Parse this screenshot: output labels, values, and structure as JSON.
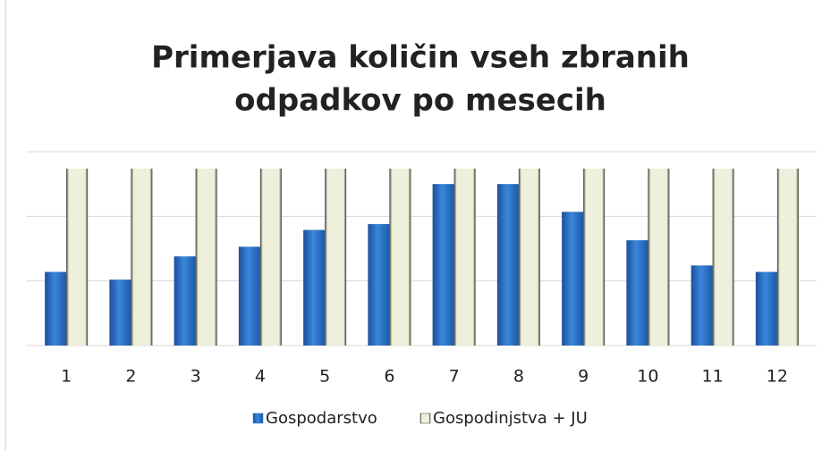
{
  "chart_data": {
    "type": "bar",
    "title": [
      "Primerjava količin vseh zbranih",
      "odpadkov po mesecih"
    ],
    "categories": [
      "1",
      "2",
      "3",
      "4",
      "5",
      "6",
      "7",
      "8",
      "9",
      "10",
      "11",
      "12"
    ],
    "series": [
      {
        "name": "Gospodarstvo",
        "color": "#2f74c9",
        "values": [
          1.14,
          1.02,
          1.38,
          1.53,
          1.79,
          1.88,
          2.5,
          2.5,
          2.07,
          1.63,
          1.24,
          1.14
        ]
      },
      {
        "name": "Gospodinjstva + JU",
        "color": "#eef0dc",
        "values": [
          2.74,
          2.74,
          2.74,
          2.74,
          2.74,
          2.74,
          2.74,
          2.74,
          2.74,
          2.74,
          2.74,
          2.74
        ]
      }
    ],
    "ylim": [
      0,
      3
    ],
    "yticks": [
      0,
      1,
      2,
      3
    ],
    "grid": true,
    "legend": "bottom"
  }
}
